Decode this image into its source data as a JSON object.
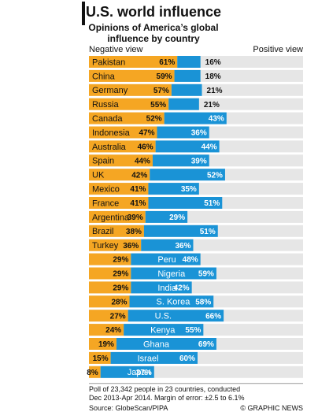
{
  "chart_data": {
    "type": "bar",
    "stacked": true,
    "orientation": "horizontal",
    "title": "U.S. world influence",
    "subtitle": "Opinions of America’s global influence by country",
    "categories": [
      "Pakistan",
      "China",
      "Germany",
      "Russia",
      "Canada",
      "Indonesia",
      "Australia",
      "Spain",
      "UK",
      "Mexico",
      "France",
      "Argentina",
      "Brazil",
      "Turkey",
      "Peru",
      "Nigeria",
      "India",
      "S. Korea",
      "U.S.",
      "Kenya",
      "Ghana",
      "Israel",
      "Japan"
    ],
    "series": [
      {
        "name": "Negative view",
        "color": "#f5a623",
        "values": [
          61,
          59,
          57,
          55,
          52,
          47,
          46,
          44,
          42,
          41,
          41,
          39,
          38,
          36,
          29,
          29,
          29,
          28,
          27,
          24,
          19,
          15,
          8
        ],
        "value_labels": [
          "61%",
          "59%",
          "57%",
          "55%",
          "52%",
          "47%",
          "46%",
          "44%",
          "42%",
          "41%",
          "41%",
          "39%",
          "38%",
          "36%",
          "29%",
          "29%",
          "29%",
          "28%",
          "27%",
          "24%",
          "19%",
          "15%",
          "8%"
        ]
      },
      {
        "name": "Positive view",
        "color": "#1a93d6",
        "values": [
          16,
          18,
          21,
          21,
          43,
          36,
          44,
          39,
          52,
          35,
          51,
          29,
          51,
          36,
          48,
          59,
          42,
          58,
          66,
          55,
          69,
          60,
          37
        ],
        "value_labels": [
          "16%",
          "18%",
          "21%",
          "21%",
          "43%",
          "36%",
          "44%",
          "39%",
          "52%",
          "35%",
          "51%",
          "29%",
          "51%",
          "36%",
          "48%",
          "59%",
          "42%",
          "58%",
          "66%",
          "55%",
          "69%",
          "60%",
          "37%"
        ]
      }
    ],
    "notes": [
      "Poll of 23,342 people in 23 countries, conducted",
      "Dec 2013-Apr 2014. Margin of error: ±2.5 to 6.1%"
    ],
    "source": "Source: GlobeScan/PIPA",
    "credit": "© GRAPHIC NEWS"
  }
}
